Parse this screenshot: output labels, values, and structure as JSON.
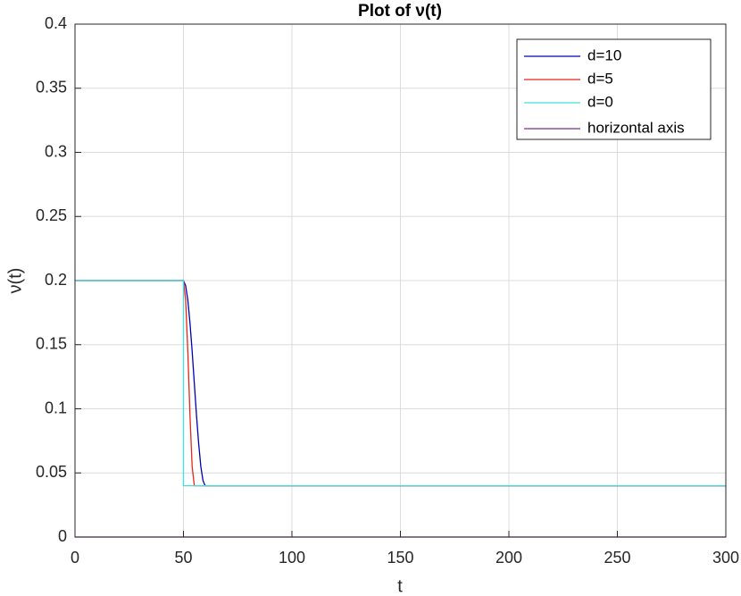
{
  "chart_data": {
    "type": "line",
    "title": "Plot of ν(t)",
    "x_label": "t",
    "y_label": "ν(t)",
    "xlim": [
      0,
      300
    ],
    "xticks": [
      0,
      50,
      100,
      150,
      200,
      250,
      300
    ],
    "ylim": [
      0,
      0.4
    ],
    "yticks": [
      0,
      0.05,
      0.1,
      0.15,
      0.2,
      0.25,
      0.3,
      0.35,
      0.4
    ],
    "grid": true,
    "legend_location": "northeast",
    "series": [
      {
        "name": "d=10",
        "color": "#0000b8",
        "x": [
          0,
          50,
          51,
          52,
          53,
          54,
          55,
          56,
          57,
          58,
          59,
          60,
          300
        ],
        "values": [
          0.2,
          0.2,
          0.196,
          0.185,
          0.167,
          0.145,
          0.12,
          0.095,
          0.073,
          0.055,
          0.044,
          0.04,
          0.04
        ]
      },
      {
        "name": "d=5",
        "color": "#e8261c",
        "x": [
          0,
          50,
          51,
          52,
          53,
          54,
          55,
          300
        ],
        "values": [
          0.2,
          0.2,
          0.185,
          0.145,
          0.095,
          0.055,
          0.04,
          0.04
        ]
      },
      {
        "name": "d=0",
        "color": "#3fe0e0",
        "x": [
          0,
          50,
          50,
          300
        ],
        "values": [
          0.2,
          0.2,
          0.04,
          0.04
        ]
      },
      {
        "name": "horizontal axis",
        "color": "#7e2f8e",
        "x": [
          0,
          300
        ],
        "values": [
          0,
          0
        ]
      }
    ]
  }
}
